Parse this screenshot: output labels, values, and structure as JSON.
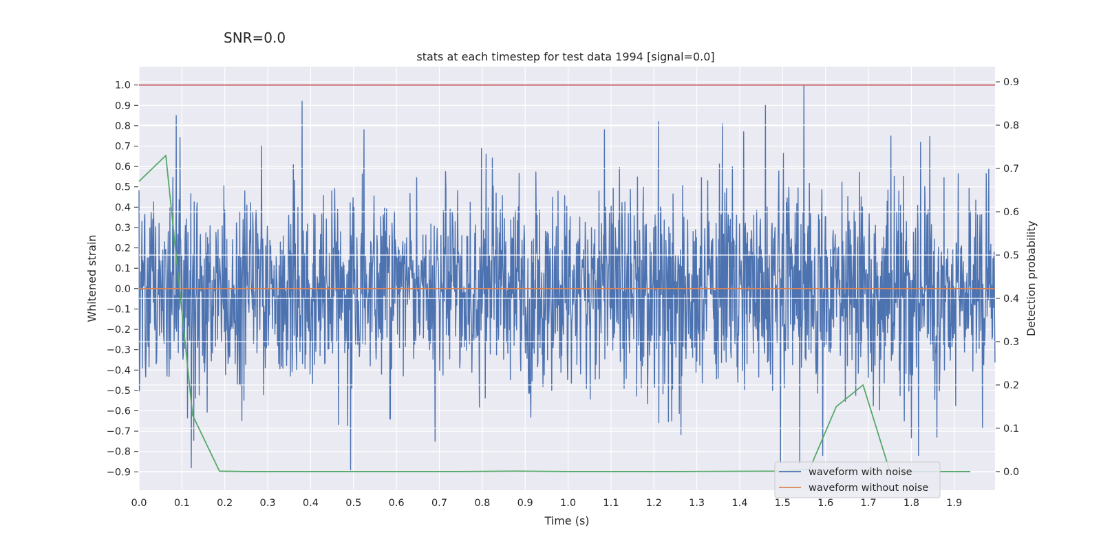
{
  "chart_data": {
    "type": "line",
    "suptitle": "SNR=0.0",
    "title": "stats at each timestep for test data 1994 [signal=0.0]",
    "xlabel": "Time (s)",
    "ylabel": "Whitened strain",
    "y2label": "Detection probability",
    "xlim": [
      0.0,
      1.995
    ],
    "ylim": [
      -0.99,
      1.09
    ],
    "y2lim": [
      -0.043,
      0.935
    ],
    "x_ticks": [
      "0.0",
      "0.1",
      "0.2",
      "0.3",
      "0.4",
      "0.5",
      "0.6",
      "0.7",
      "0.8",
      "0.9",
      "1.0",
      "1.1",
      "1.2",
      "1.3",
      "1.4",
      "1.5",
      "1.6",
      "1.7",
      "1.8",
      "1.9"
    ],
    "y_ticks": [
      "1.0",
      "0.9",
      "0.8",
      "0.7",
      "0.6",
      "0.5",
      "0.4",
      "0.3",
      "0.2",
      "0.1",
      "0.0",
      "−0.1",
      "−0.2",
      "−0.3",
      "−0.4",
      "−0.5",
      "−0.6",
      "−0.7",
      "−0.8",
      "−0.9"
    ],
    "y2_ticks": [
      "0.9",
      "0.8",
      "0.7",
      "0.6",
      "0.5",
      "0.4",
      "0.3",
      "0.2",
      "0.1",
      "0.0"
    ],
    "legend": {
      "position": "lower-right",
      "entries": [
        {
          "label": "waveform with noise",
          "color": "#4c72b0"
        },
        {
          "label": "waveform without noise",
          "color": "#dd8452"
        }
      ]
    },
    "series": [
      {
        "name": "waveform with noise",
        "axis": "left",
        "color": "#4c72b0",
        "x_start": 0.0,
        "x_end": 1.995,
        "n_points": 2048,
        "noise_std": 0.25,
        "clip": [
          -0.9,
          1.0
        ],
        "peaks": [
          {
            "x": 0.087,
            "y": 0.85
          },
          {
            "x": 0.122,
            "y": -0.88
          },
          {
            "x": 0.38,
            "y": 0.92
          },
          {
            "x": 0.493,
            "y": -0.89
          },
          {
            "x": 1.21,
            "y": 0.82
          },
          {
            "x": 1.36,
            "y": 0.81
          },
          {
            "x": 1.46,
            "y": 0.9
          },
          {
            "x": 1.55,
            "y": 1.0
          },
          {
            "x": 1.495,
            "y": -0.86
          },
          {
            "x": 1.54,
            "y": -0.86
          },
          {
            "x": 0.69,
            "y": -0.75
          },
          {
            "x": 1.86,
            "y": -0.73
          }
        ]
      },
      {
        "name": "waveform without noise",
        "axis": "left",
        "color": "#dd8452",
        "x": [
          0.0,
          1.995
        ],
        "y": [
          0.0,
          0.0
        ]
      },
      {
        "name": "threshold",
        "axis": "left",
        "color": "#c44e52",
        "x": [
          0.0,
          1.995
        ],
        "y": [
          1.0,
          1.0
        ]
      },
      {
        "name": "detection probability",
        "axis": "right",
        "color": "#55a868",
        "x": [
          0.0,
          0.0625,
          0.125,
          0.1875,
          0.25,
          0.5,
          0.75,
          0.875,
          1.0,
          1.25,
          1.5,
          1.5625,
          1.625,
          1.6875,
          1.75,
          1.8125,
          1.875,
          1.9375
        ],
        "y": [
          0.67,
          0.73,
          0.13,
          0.001,
          0.0,
          0.0,
          0.0,
          0.001,
          0.0,
          0.0,
          0.001,
          0.005,
          0.15,
          0.2,
          0.0,
          0.0,
          0.0,
          0.0
        ]
      }
    ]
  }
}
